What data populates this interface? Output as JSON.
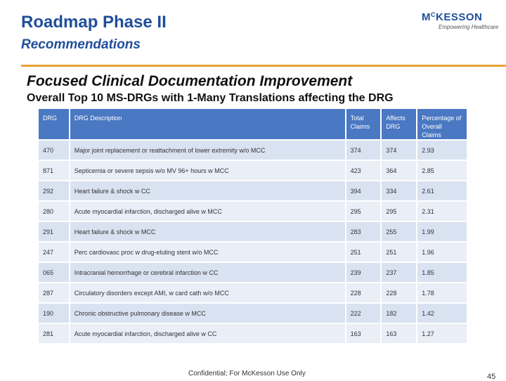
{
  "header": {
    "title": "Roadmap Phase II",
    "subtitle": "Recommendations"
  },
  "logo": {
    "name_prefix": "M",
    "name_sup": "C",
    "name_rest": "KESSON",
    "tagline": "Empowering Healthcare"
  },
  "accent_color": "#e8a33c",
  "main": {
    "heading": "Focused Clinical Documentation Improvement",
    "subheading": "Overall Top 10 MS-DRGs with 1-Many Translations affecting the DRG"
  },
  "table": {
    "headers": [
      "DRG",
      "DRG Description",
      "Total Claims",
      "Affects DRG",
      "Percentage of Overall Claims"
    ],
    "rows": [
      [
        "470",
        "Major joint replacement or reattachment of lower extremity w/o MCC",
        "374",
        "374",
        "2.93"
      ],
      [
        "871",
        "Septicemia or severe sepsis w/o MV 96+ hours w MCC",
        "423",
        "364",
        "2.85"
      ],
      [
        "292",
        "Heart failure & shock w CC",
        "394",
        "334",
        "2.61"
      ],
      [
        "280",
        "Acute myocardial infarction, discharged alive w MCC",
        "295",
        "295",
        "2.31"
      ],
      [
        "291",
        "Heart failure & shock w MCC",
        "283",
        "255",
        "1.99"
      ],
      [
        "247",
        "Perc cardiovasc proc w drug-eluting stent w/o MCC",
        "251",
        "251",
        "1.96"
      ],
      [
        "065",
        "Intracranial hemorrhage or cerebral infarction w CC",
        "239",
        "237",
        "1.85"
      ],
      [
        "287",
        "Circulatory disorders except AMI, w card cath w/o MCC",
        "228",
        "228",
        "1.78"
      ],
      [
        "190",
        "Chronic obstructive pulmonary disease w MCC",
        "222",
        "182",
        "1.42"
      ],
      [
        "281",
        "Acute myocardial infarction, discharged alive w CC",
        "163",
        "163",
        "1.27"
      ]
    ]
  },
  "footer": {
    "confidential": "Confidential; For McKesson Use Only",
    "page_number": "45"
  }
}
